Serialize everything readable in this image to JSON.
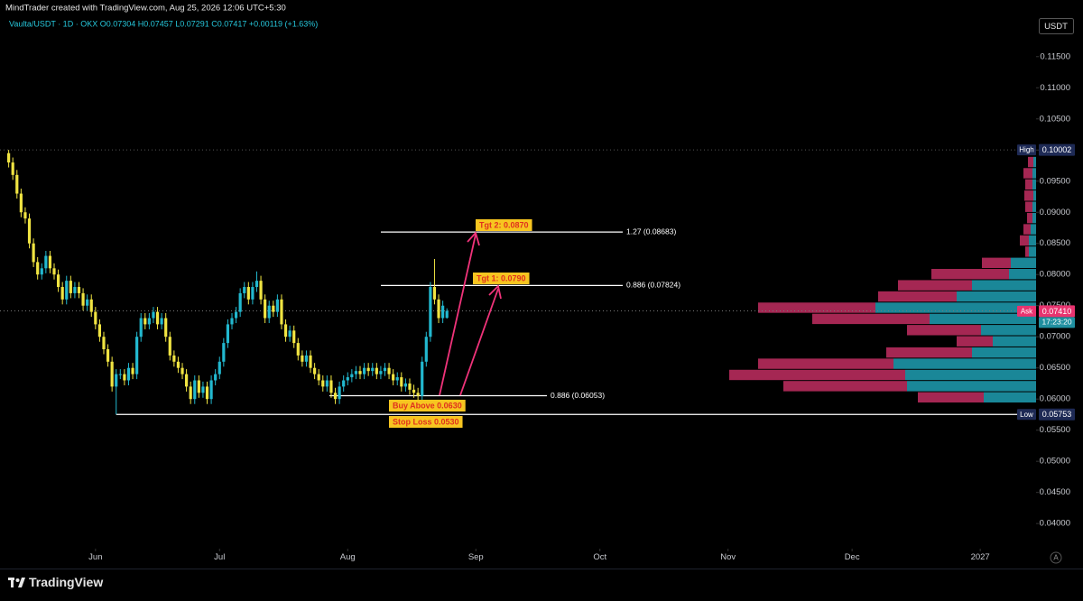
{
  "chart_data": {
    "type": "candlestick",
    "header": "MindTrader created with TradingView.com, Aug 25, 2026 12:06 UTC+5:30",
    "title": "Vaulta/USDT · 1D · OKX  O0.07304  H0.07457  L0.07291  C0.07417  +0.00119 (+1.63%)",
    "currency": "USDT",
    "up_color": "#22b8cf",
    "down_color": "#f0e442",
    "x": [
      0,
      1,
      2,
      3,
      4,
      5,
      6,
      7,
      8,
      9,
      10,
      11,
      12,
      13,
      14,
      15,
      16,
      17,
      18,
      19,
      20,
      21,
      22,
      23,
      24,
      25,
      26,
      27,
      28,
      29,
      30,
      31,
      32,
      33,
      34,
      35,
      36,
      37,
      38,
      39,
      40,
      41,
      42,
      43,
      44,
      45,
      46,
      47,
      48,
      49,
      50,
      51,
      52,
      53,
      54,
      55,
      56,
      57,
      58,
      59,
      60,
      61,
      62,
      63,
      64,
      65,
      66,
      67,
      68,
      69,
      70,
      71,
      72,
      73,
      74,
      75,
      76,
      77,
      78,
      79,
      80,
      81,
      82,
      83,
      84,
      85,
      86,
      87,
      88,
      89,
      90,
      91,
      92,
      93,
      94,
      95,
      96,
      97,
      98,
      99,
      100,
      101,
      102,
      103,
      104,
      105,
      106
    ],
    "open": [
      0.0995,
      0.098,
      0.096,
      0.093,
      0.09,
      0.089,
      0.085,
      0.082,
      0.08,
      0.081,
      0.083,
      0.081,
      0.08,
      0.078,
      0.076,
      0.079,
      0.077,
      0.078,
      0.077,
      0.075,
      0.076,
      0.074,
      0.072,
      0.07,
      0.068,
      0.066,
      0.062,
      0.064,
      0.064,
      0.063,
      0.065,
      0.064,
      0.07,
      0.073,
      0.072,
      0.073,
      0.074,
      0.072,
      0.073,
      0.07,
      0.067,
      0.066,
      0.065,
      0.064,
      0.062,
      0.06,
      0.063,
      0.061,
      0.062,
      0.06,
      0.063,
      0.064,
      0.066,
      0.069,
      0.072,
      0.073,
      0.074,
      0.077,
      0.078,
      0.076,
      0.078,
      0.079,
      0.076,
      0.073,
      0.075,
      0.074,
      0.076,
      0.072,
      0.07,
      0.071,
      0.069,
      0.067,
      0.066,
      0.067,
      0.065,
      0.064,
      0.063,
      0.062,
      0.063,
      0.061,
      0.06,
      0.062,
      0.063,
      0.0635,
      0.064,
      0.0645,
      0.064,
      0.065,
      0.0645,
      0.065,
      0.064,
      0.0645,
      0.065,
      0.064,
      0.063,
      0.0635,
      0.062,
      0.0625,
      0.0615,
      0.061,
      0.0605,
      0.066,
      0.07,
      0.078,
      0.076,
      0.073,
      0.07304
    ],
    "high": [
      0.10002,
      0.0988,
      0.0968,
      0.0938,
      0.0908,
      0.0898,
      0.0858,
      0.0828,
      0.0818,
      0.0838,
      0.0838,
      0.0818,
      0.0808,
      0.0788,
      0.0798,
      0.0798,
      0.0788,
      0.0788,
      0.0778,
      0.0768,
      0.0768,
      0.0748,
      0.0728,
      0.0708,
      0.0688,
      0.0668,
      0.0648,
      0.0648,
      0.0648,
      0.0658,
      0.0658,
      0.0708,
      0.0738,
      0.0738,
      0.0738,
      0.0748,
      0.0748,
      0.0738,
      0.0738,
      0.0708,
      0.0678,
      0.0668,
      0.0658,
      0.0648,
      0.0628,
      0.0638,
      0.0638,
      0.0628,
      0.0628,
      0.0638,
      0.0648,
      0.0668,
      0.0698,
      0.0728,
      0.0738,
      0.0748,
      0.0778,
      0.0788,
      0.0788,
      0.0788,
      0.0805,
      0.0798,
      0.0768,
      0.0758,
      0.0758,
      0.0768,
      0.0768,
      0.0728,
      0.0718,
      0.0718,
      0.0698,
      0.0678,
      0.0678,
      0.0678,
      0.0658,
      0.0648,
      0.0638,
      0.0638,
      0.0638,
      0.0618,
      0.0628,
      0.0638,
      0.0643,
      0.0648,
      0.0653,
      0.0653,
      0.0658,
      0.0658,
      0.0658,
      0.0658,
      0.0653,
      0.0658,
      0.0658,
      0.0648,
      0.0643,
      0.0643,
      0.0633,
      0.0633,
      0.0623,
      0.0618,
      0.0668,
      0.0708,
      0.0788,
      0.0825,
      0.0768,
      0.0758,
      0.07457
    ],
    "low": [
      0.0972,
      0.0952,
      0.0922,
      0.0892,
      0.0882,
      0.0842,
      0.0812,
      0.0792,
      0.0792,
      0.0802,
      0.0802,
      0.0792,
      0.0772,
      0.0752,
      0.0752,
      0.0762,
      0.0762,
      0.0762,
      0.0742,
      0.0742,
      0.0732,
      0.0712,
      0.0692,
      0.0672,
      0.0652,
      0.0612,
      0.05753,
      0.0632,
      0.0622,
      0.0622,
      0.0632,
      0.0632,
      0.0692,
      0.0712,
      0.0712,
      0.0722,
      0.0712,
      0.0712,
      0.0692,
      0.0662,
      0.0652,
      0.0642,
      0.0632,
      0.0612,
      0.0592,
      0.0592,
      0.0602,
      0.0602,
      0.0592,
      0.0592,
      0.0622,
      0.0632,
      0.0652,
      0.0682,
      0.0712,
      0.0722,
      0.0732,
      0.0762,
      0.0752,
      0.0752,
      0.0772,
      0.0752,
      0.0722,
      0.0722,
      0.0732,
      0.0732,
      0.0712,
      0.0692,
      0.0692,
      0.0682,
      0.0662,
      0.0652,
      0.0652,
      0.0642,
      0.0632,
      0.0622,
      0.0612,
      0.0612,
      0.0602,
      0.0592,
      0.0592,
      0.0612,
      0.0622,
      0.0627,
      0.0632,
      0.0632,
      0.0632,
      0.0637,
      0.0637,
      0.0632,
      0.0632,
      0.0637,
      0.0632,
      0.0622,
      0.0622,
      0.0612,
      0.0612,
      0.0607,
      0.0602,
      0.0597,
      0.0597,
      0.0652,
      0.0692,
      0.0752,
      0.0722,
      0.0722,
      0.07291
    ],
    "close": [
      0.098,
      0.096,
      0.093,
      0.09,
      0.089,
      0.085,
      0.082,
      0.08,
      0.081,
      0.083,
      0.081,
      0.08,
      0.078,
      0.076,
      0.079,
      0.077,
      0.078,
      0.077,
      0.075,
      0.076,
      0.074,
      0.072,
      0.07,
      0.068,
      0.066,
      0.062,
      0.064,
      0.064,
      0.063,
      0.065,
      0.064,
      0.07,
      0.073,
      0.072,
      0.073,
      0.074,
      0.072,
      0.073,
      0.07,
      0.067,
      0.066,
      0.065,
      0.064,
      0.062,
      0.06,
      0.063,
      0.061,
      0.062,
      0.06,
      0.063,
      0.064,
      0.066,
      0.069,
      0.072,
      0.073,
      0.074,
      0.077,
      0.078,
      0.076,
      0.078,
      0.079,
      0.076,
      0.073,
      0.075,
      0.074,
      0.076,
      0.072,
      0.07,
      0.071,
      0.069,
      0.067,
      0.066,
      0.067,
      0.065,
      0.064,
      0.063,
      0.062,
      0.063,
      0.061,
      0.06,
      0.062,
      0.063,
      0.0635,
      0.064,
      0.0645,
      0.064,
      0.065,
      0.0645,
      0.065,
      0.064,
      0.0645,
      0.065,
      0.064,
      0.063,
      0.0635,
      0.062,
      0.0625,
      0.0615,
      0.061,
      0.0605,
      0.066,
      0.07,
      0.078,
      0.076,
      0.073,
      0.075,
      0.07417
    ],
    "xlim": [
      -2.1,
      248.5
    ],
    "xticks": [
      {
        "value": 21,
        "label": "Jun"
      },
      {
        "value": 51,
        "label": "Jul"
      },
      {
        "value": 82,
        "label": "Aug"
      },
      {
        "value": 113,
        "label": "Sep"
      },
      {
        "value": 143,
        "label": "Oct"
      },
      {
        "value": 174,
        "label": "Nov"
      },
      {
        "value": 204,
        "label": "Dec"
      },
      {
        "value": 235,
        "label": "2027"
      }
    ],
    "ylim": [
      0.0364,
      0.1212
    ],
    "yticks": [
      {
        "value": 0.04,
        "label": "0.04000"
      },
      {
        "value": 0.045,
        "label": "0.04500"
      },
      {
        "value": 0.05,
        "label": "0.05000"
      },
      {
        "value": 0.055,
        "label": "0.05500"
      },
      {
        "value": 0.06,
        "label": "0.06000"
      },
      {
        "value": 0.065,
        "label": "0.06500"
      },
      {
        "value": 0.07,
        "label": "0.07000"
      },
      {
        "value": 0.075,
        "label": "0.07500"
      },
      {
        "value": 0.08,
        "label": "0.08000"
      },
      {
        "value": 0.085,
        "label": "0.08500"
      },
      {
        "value": 0.09,
        "label": "0.09000"
      },
      {
        "value": 0.095,
        "label": "0.09500"
      },
      {
        "value": 0.1,
        "label": "0.10000"
      },
      {
        "value": 0.105,
        "label": "0.10500"
      },
      {
        "value": 0.11,
        "label": "0.11000"
      },
      {
        "value": 0.115,
        "label": "0.11500"
      }
    ],
    "grid": false,
    "high_marker": {
      "label": "High",
      "value": 0.10002
    },
    "low_marker": {
      "label": "Low",
      "value": 0.05753
    },
    "ask": {
      "label": "Ask",
      "value": 0.0741,
      "value_label": "0.07410"
    },
    "countdown": "17:23:20",
    "fib_levels": [
      {
        "label": "1.27 (0.08683)",
        "price": 0.08683
      },
      {
        "label": "0.886 (0.07824)",
        "price": 0.07824
      },
      {
        "label": "0.886 (0.06053)",
        "price": 0.06053
      }
    ],
    "annotations": [
      "Tgt 2: 0.0870",
      "Tgt 1: 0.0790",
      "Buy Above 0.0630",
      "Stop Loss 0.0530"
    ],
    "profile": {
      "bins": [
        0.0593,
        0.0611,
        0.0629,
        0.0647,
        0.0665,
        0.0683,
        0.0701,
        0.0719,
        0.0737,
        0.0755,
        0.0773,
        0.0791,
        0.0809,
        0.0827,
        0.0845,
        0.0863,
        0.0881,
        0.0899,
        0.0917,
        0.0935,
        0.0953,
        0.0971,
        0.0989
      ],
      "up": [
        58,
        143,
        145,
        158,
        71,
        48,
        61,
        118,
        178,
        88,
        71,
        30,
        28,
        8,
        8,
        6,
        4,
        4,
        3,
        4,
        4,
        3
      ],
      "down": [
        73,
        137,
        195,
        150,
        95,
        40,
        82,
        130,
        130,
        87,
        82,
        86,
        32,
        4,
        10,
        8,
        6,
        8,
        10,
        8,
        10,
        6
      ],
      "up_color": "#1f9fb3",
      "down_color": "#c22e62"
    },
    "footer_brand": "TradingView",
    "auto_button": "A"
  }
}
